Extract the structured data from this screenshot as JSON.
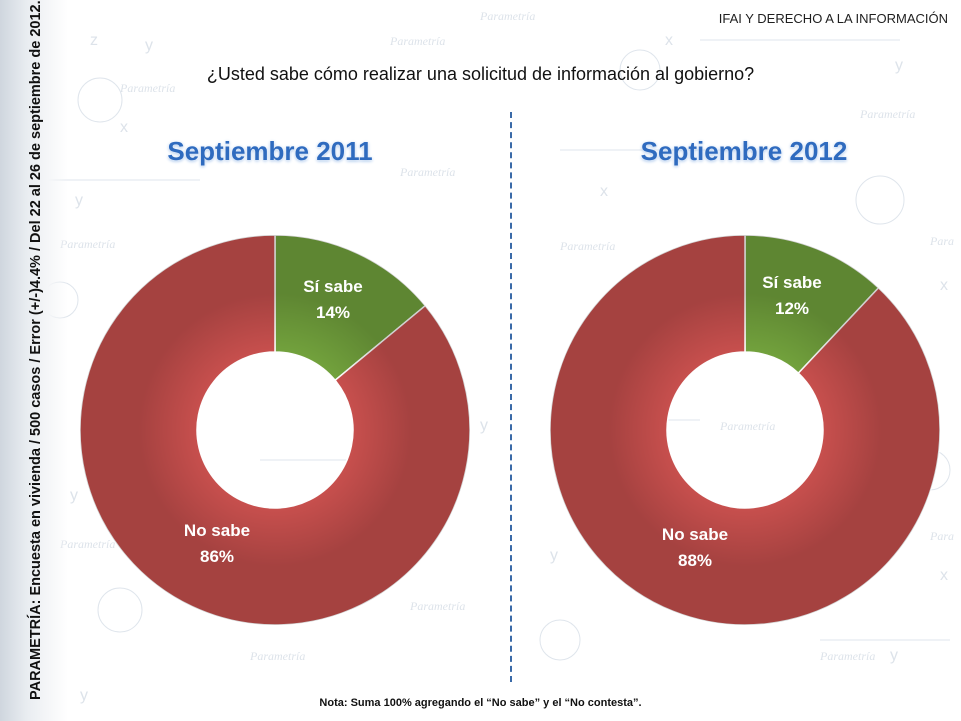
{
  "header": {
    "title": "IFAI Y DERECHO A LA INFORMACIÓN"
  },
  "question": "¿Usted sabe cómo realizar una solicitud de información al gobierno?",
  "side_note": "PARAMETRÍA: Encuesta en vivienda / 500 casos / Error (+/-)4.4% / Del 22 al 26 de septiembre de 2012.",
  "footnote": "Nota: Suma 100% agregando el “No sabe” y el “No contesta”.",
  "colors": {
    "no_sabe": "#c9504e",
    "si_sabe": "#73a33d",
    "title": "#2f6bbf",
    "divider": "#3a6aa8"
  },
  "chart_data": [
    {
      "type": "pie",
      "donut": true,
      "title": "Septiembre 2011",
      "slices": [
        {
          "label": "Sí sabe",
          "value": 14,
          "display": "14%"
        },
        {
          "label": "No sabe",
          "value": 86,
          "display": "86%"
        }
      ]
    },
    {
      "type": "pie",
      "donut": true,
      "title": "Septiembre 2012",
      "slices": [
        {
          "label": "Sí sabe",
          "value": 12,
          "display": "12%"
        },
        {
          "label": "No sabe",
          "value": 88,
          "display": "88%"
        }
      ]
    }
  ]
}
